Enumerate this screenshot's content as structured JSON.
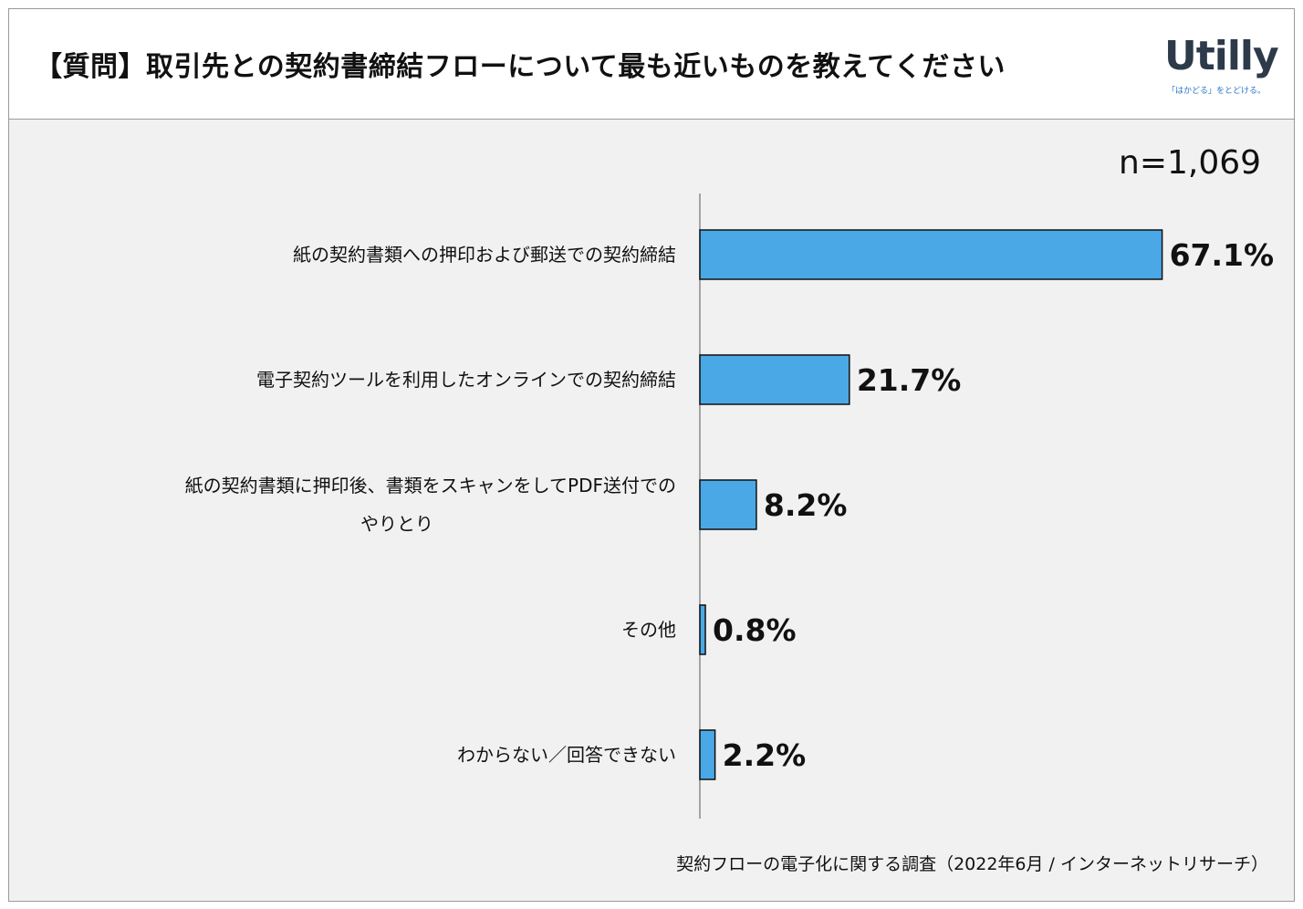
{
  "title": "【質問】取引先との契約書締結フローについて最も近いものを教えてください",
  "logo": {
    "word": "Utilly",
    "tagline": "「はかどる」をとどける。"
  },
  "sample_size": "n=1,069",
  "source": "契約フローの電子化に関する調査（2022年6月 / インターネットリサーチ）",
  "colors": {
    "bar": "#4aa8e6",
    "background": "#f1f1f1"
  },
  "chart_data": {
    "type": "bar",
    "orientation": "horizontal",
    "categories": [
      [
        "紙の契約書類への押印および郵送での契約締結"
      ],
      [
        "電子契約ツールを利用したオンラインでの契約締結"
      ],
      [
        "紙の契約書類に押印後、書類をスキャンをしてPDF送付での",
        "やりとり"
      ],
      [
        "その他"
      ],
      [
        "わからない／回答できない"
      ]
    ],
    "values": [
      67.1,
      21.7,
      8.2,
      0.8,
      2.2
    ],
    "data_labels": [
      "67.1%",
      "21.7%",
      "8.2%",
      "0.8%",
      "2.2%"
    ],
    "unit": "%",
    "xlim": [
      0,
      100
    ],
    "grid": false,
    "legend": "none"
  }
}
